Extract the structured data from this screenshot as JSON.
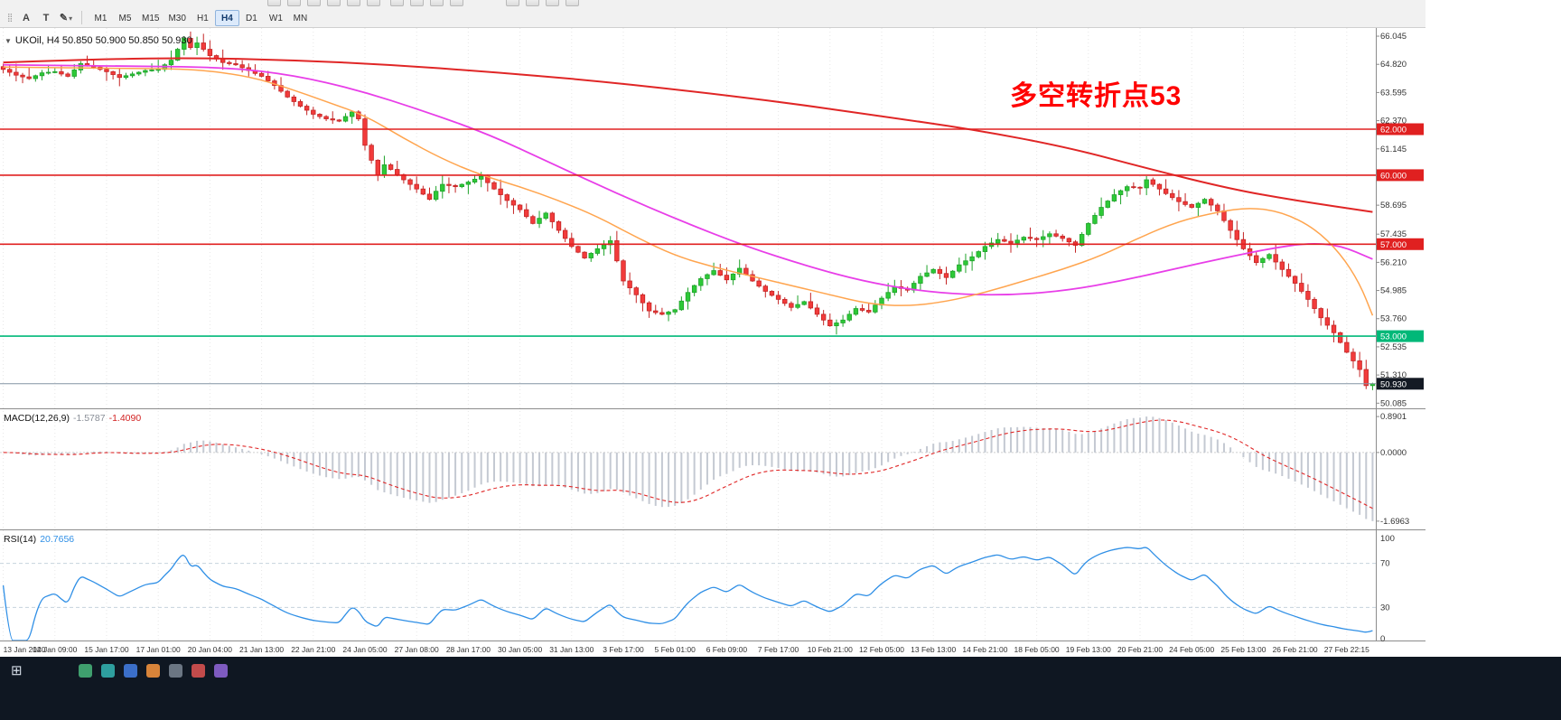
{
  "toolbar": {
    "tools": [
      {
        "label": "A"
      },
      {
        "label": "T"
      }
    ],
    "timeframes": [
      "M1",
      "M5",
      "M15",
      "M30",
      "H1",
      "H4",
      "D1",
      "W1",
      "MN"
    ],
    "active_timeframe": "H4",
    "cropped_icon_names": [
      "new-order",
      "refresh",
      "charts-bar",
      "charts-candle",
      "charts-line",
      "zoom-in",
      "zoom-out",
      "tile-windows",
      "navigator",
      "terminal",
      "strategy-tester",
      "new-chart",
      "profiles",
      "indicators"
    ]
  },
  "chart": {
    "title": "UKOil, H4 50.850 50.900 50.850 50.930",
    "annotation": {
      "text": "多空转折点53",
      "color": "#ff0000"
    },
    "price_axis": {
      "min": 49.9,
      "max": 66.4,
      "labels": [
        "66.045",
        "64.820",
        "63.595",
        "62.370",
        "61.145",
        "59.920",
        "58.695",
        "57.435",
        "56.210",
        "54.985",
        "53.760",
        "52.535",
        "51.310",
        "50.085"
      ]
    },
    "levels": [
      {
        "value": 62.0,
        "label": "62.000",
        "color": "#e02020"
      },
      {
        "value": 60.0,
        "label": "60.000",
        "color": "#e02020"
      },
      {
        "value": 57.0,
        "label": "57.000",
        "color": "#e02020"
      },
      {
        "value": 53.0,
        "label": "53.000",
        "color": "#00b878"
      }
    ],
    "bid": {
      "value": 50.93,
      "label": "50.930"
    },
    "colors": {
      "grid": "#e7e7e7",
      "bid_line": "#8494a4",
      "bid_badge": "#141a24",
      "separator": "#8c8c8c",
      "axis_text": "#333333"
    }
  },
  "chart_data": {
    "type": "candlestick",
    "symbol": "UKOil",
    "period": "H4",
    "candle_count": 213,
    "seed": 7,
    "noise": 0.4,
    "ylim": [
      49.9,
      66.4
    ],
    "close_anchors": [
      [
        0,
        64.6
      ],
      [
        2,
        64.35
      ],
      [
        4,
        64.2
      ],
      [
        6,
        64.45
      ],
      [
        8,
        64.5
      ],
      [
        10,
        64.3
      ],
      [
        12,
        64.85
      ],
      [
        14,
        64.7
      ],
      [
        16,
        64.5
      ],
      [
        18,
        64.25
      ],
      [
        20,
        64.4
      ],
      [
        22,
        64.55
      ],
      [
        24,
        64.6
      ],
      [
        26,
        65.0
      ],
      [
        28,
        65.95
      ],
      [
        29,
        65.55
      ],
      [
        30,
        65.75
      ],
      [
        32,
        65.2
      ],
      [
        34,
        64.9
      ],
      [
        36,
        64.8
      ],
      [
        38,
        64.55
      ],
      [
        40,
        64.3
      ],
      [
        42,
        63.9
      ],
      [
        44,
        63.4
      ],
      [
        46,
        63.0
      ],
      [
        48,
        62.65
      ],
      [
        50,
        62.45
      ],
      [
        52,
        62.35
      ],
      [
        54,
        62.75
      ],
      [
        55,
        62.45
      ],
      [
        56,
        61.3
      ],
      [
        58,
        60.0
      ],
      [
        59,
        60.45
      ],
      [
        60,
        60.25
      ],
      [
        62,
        59.8
      ],
      [
        64,
        59.4
      ],
      [
        66,
        58.95
      ],
      [
        67,
        59.3
      ],
      [
        68,
        59.6
      ],
      [
        70,
        59.5
      ],
      [
        72,
        59.7
      ],
      [
        74,
        59.95
      ],
      [
        76,
        59.4
      ],
      [
        78,
        58.9
      ],
      [
        80,
        58.5
      ],
      [
        82,
        57.9
      ],
      [
        84,
        58.35
      ],
      [
        86,
        57.6
      ],
      [
        88,
        56.9
      ],
      [
        90,
        56.4
      ],
      [
        92,
        56.8
      ],
      [
        94,
        57.15
      ],
      [
        96,
        55.4
      ],
      [
        98,
        54.8
      ],
      [
        100,
        54.1
      ],
      [
        102,
        53.95
      ],
      [
        104,
        54.15
      ],
      [
        106,
        54.9
      ],
      [
        108,
        55.5
      ],
      [
        110,
        55.85
      ],
      [
        112,
        55.45
      ],
      [
        114,
        55.95
      ],
      [
        116,
        55.4
      ],
      [
        118,
        54.95
      ],
      [
        120,
        54.6
      ],
      [
        122,
        54.25
      ],
      [
        124,
        54.5
      ],
      [
        126,
        53.95
      ],
      [
        128,
        53.45
      ],
      [
        130,
        53.7
      ],
      [
        132,
        54.2
      ],
      [
        134,
        54.05
      ],
      [
        136,
        54.65
      ],
      [
        138,
        55.15
      ],
      [
        140,
        55.0
      ],
      [
        142,
        55.6
      ],
      [
        144,
        55.9
      ],
      [
        146,
        55.55
      ],
      [
        148,
        56.1
      ],
      [
        150,
        56.45
      ],
      [
        152,
        56.9
      ],
      [
        154,
        57.2
      ],
      [
        156,
        57.05
      ],
      [
        158,
        57.3
      ],
      [
        160,
        57.2
      ],
      [
        162,
        57.45
      ],
      [
        164,
        57.25
      ],
      [
        166,
        56.95
      ],
      [
        168,
        57.9
      ],
      [
        170,
        58.6
      ],
      [
        172,
        59.15
      ],
      [
        174,
        59.5
      ],
      [
        176,
        59.45
      ],
      [
        177,
        59.8
      ],
      [
        178,
        59.6
      ],
      [
        180,
        59.2
      ],
      [
        182,
        58.85
      ],
      [
        184,
        58.6
      ],
      [
        186,
        58.95
      ],
      [
        188,
        58.45
      ],
      [
        190,
        57.6
      ],
      [
        192,
        56.8
      ],
      [
        194,
        56.2
      ],
      [
        196,
        56.55
      ],
      [
        198,
        55.9
      ],
      [
        200,
        55.3
      ],
      [
        202,
        54.6
      ],
      [
        204,
        53.8
      ],
      [
        206,
        53.15
      ],
      [
        208,
        52.3
      ],
      [
        210,
        51.55
      ],
      [
        211,
        50.85
      ],
      [
        212,
        50.93
      ]
    ],
    "high_overrides": [
      [
        28,
        66.045
      ],
      [
        177,
        59.96
      ]
    ],
    "colors": {
      "up_fill": "#2dc937",
      "up_border": "#1fa32a",
      "down_fill": "#f23b3b",
      "down_border": "#c42525",
      "macd_bar": "#c4c9d2",
      "macd_signal": "#e02626",
      "rsi_line": "#2f8fe6",
      "rsi_level": "#c6d2dd"
    },
    "ma_lines": [
      {
        "name": "ma-slow-red-line",
        "color": "#e02626",
        "width": 2,
        "points": [
          [
            0,
            64.9
          ],
          [
            15,
            65.05
          ],
          [
            30,
            65.1
          ],
          [
            45,
            65.0
          ],
          [
            60,
            64.8
          ],
          [
            75,
            64.5
          ],
          [
            90,
            64.15
          ],
          [
            105,
            63.7
          ],
          [
            120,
            63.2
          ],
          [
            135,
            62.6
          ],
          [
            150,
            62.0
          ],
          [
            165,
            61.2
          ],
          [
            177,
            60.3
          ],
          [
            190,
            59.4
          ],
          [
            200,
            58.9
          ],
          [
            212,
            58.4
          ]
        ]
      },
      {
        "name": "ma-medium-magenta-line",
        "color": "#e83ee8",
        "width": 1.8,
        "points": [
          [
            0,
            64.8
          ],
          [
            20,
            64.75
          ],
          [
            35,
            64.68
          ],
          [
            45,
            64.35
          ],
          [
            55,
            63.7
          ],
          [
            65,
            62.8
          ],
          [
            75,
            61.8
          ],
          [
            85,
            60.5
          ],
          [
            95,
            59.2
          ],
          [
            105,
            58.0
          ],
          [
            115,
            56.9
          ],
          [
            125,
            56.0
          ],
          [
            133,
            55.4
          ],
          [
            141,
            55.0
          ],
          [
            149,
            54.8
          ],
          [
            157,
            54.8
          ],
          [
            165,
            55.0
          ],
          [
            173,
            55.4
          ],
          [
            181,
            55.9
          ],
          [
            189,
            56.4
          ],
          [
            196,
            56.8
          ],
          [
            202,
            57.05
          ],
          [
            207,
            56.95
          ],
          [
            212,
            56.35
          ]
        ]
      },
      {
        "name": "ma-fast-orange-line",
        "color": "#ffa54f",
        "width": 1.5,
        "points": [
          [
            0,
            64.7
          ],
          [
            20,
            64.65
          ],
          [
            30,
            64.6
          ],
          [
            38,
            64.3
          ],
          [
            44,
            63.8
          ],
          [
            50,
            63.2
          ],
          [
            56,
            62.6
          ],
          [
            62,
            61.6
          ],
          [
            68,
            60.7
          ],
          [
            74,
            60.0
          ],
          [
            80,
            59.5
          ],
          [
            86,
            58.9
          ],
          [
            92,
            58.2
          ],
          [
            98,
            57.3
          ],
          [
            104,
            56.5
          ],
          [
            110,
            56.0
          ],
          [
            116,
            55.6
          ],
          [
            122,
            55.2
          ],
          [
            128,
            54.8
          ],
          [
            134,
            54.4
          ],
          [
            140,
            54.3
          ],
          [
            146,
            54.5
          ],
          [
            152,
            54.9
          ],
          [
            158,
            55.4
          ],
          [
            164,
            55.9
          ],
          [
            170,
            56.5
          ],
          [
            176,
            57.3
          ],
          [
            182,
            58.0
          ],
          [
            188,
            58.4
          ],
          [
            193,
            58.6
          ],
          [
            198,
            58.4
          ],
          [
            203,
            57.7
          ],
          [
            207,
            56.6
          ],
          [
            210,
            55.3
          ],
          [
            212,
            53.9
          ]
        ]
      }
    ]
  },
  "macd": {
    "name": "MACD(12,26,9)",
    "value_main": "-1.5787",
    "value_signal": "-1.4090",
    "fast": 12,
    "slow": 26,
    "signal": 9,
    "axis_labels": {
      "max": "0.8901",
      "zero": "0.0000",
      "min": "-1.6963"
    }
  },
  "rsi": {
    "name": "RSI(14)",
    "value": "20.7656",
    "period": 14,
    "levels": [
      70,
      30
    ],
    "axis_labels": [
      "100",
      "70",
      "30",
      "0"
    ]
  },
  "time_axis": {
    "labels": [
      "13 Jan 2020",
      "14 Jan 09:00",
      "15 Jan 17:00",
      "17 Jan 01:00",
      "20 Jan 04:00",
      "21 Jan 13:00",
      "22 Jan 21:00",
      "24 Jan 05:00",
      "27 Jan 08:00",
      "28 Jan 17:00",
      "30 Jan 05:00",
      "31 Jan 13:00",
      "3 Feb 17:00",
      "5 Feb 01:00",
      "6 Feb 09:00",
      "7 Feb 17:00",
      "10 Feb 21:00",
      "12 Feb 05:00",
      "13 Feb 13:00",
      "14 Feb 21:00",
      "18 Feb 05:00",
      "19 Feb 13:00",
      "20 Feb 21:00",
      "24 Feb 05:00",
      "25 Feb 13:00",
      "26 Feb 21:00",
      "27 Feb 22:15"
    ]
  },
  "taskbar": {
    "icons": [
      {
        "name": "app-green",
        "color": "#3f9f6e"
      },
      {
        "name": "app-teal",
        "color": "#2e9f9f"
      },
      {
        "name": "app-blue",
        "color": "#3b6fc9"
      },
      {
        "name": "app-orange",
        "color": "#d8843a"
      },
      {
        "name": "app-gray",
        "color": "#6b7683"
      },
      {
        "name": "app-red",
        "color": "#c24b4b"
      },
      {
        "name": "app-purple",
        "color": "#7e5bc0"
      }
    ]
  }
}
